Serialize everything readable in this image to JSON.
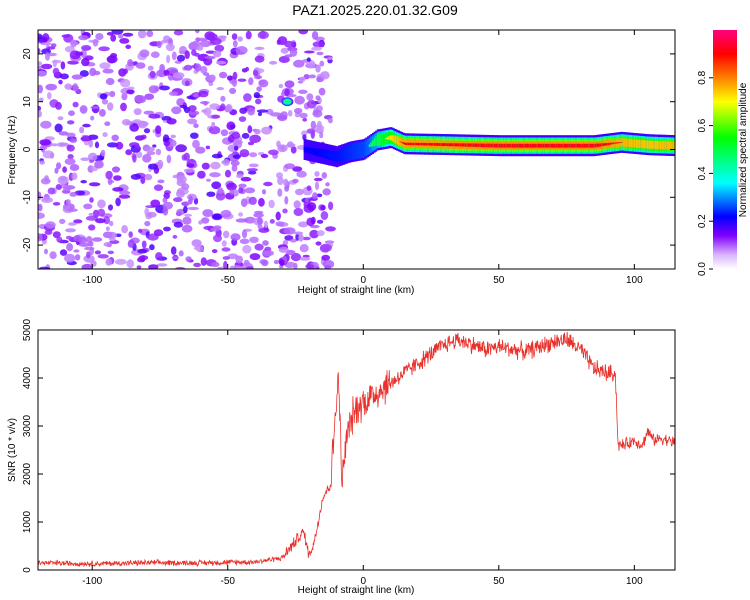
{
  "title": "PAZ1.2025.220.01.32.G09",
  "chart_data": [
    {
      "type": "heatmap",
      "xlabel": "Height of straight line (km)",
      "ylabel": "Frequency (Hz)",
      "xlim": [
        -120,
        115
      ],
      "ylim": [
        -25,
        25
      ],
      "x_ticks": [
        -100,
        -50,
        0,
        50,
        100
      ],
      "y_ticks": [
        -20,
        -10,
        0,
        10,
        20
      ],
      "colorbar": {
        "label": "Normalized spectral amplitude",
        "range": [
          0,
          1
        ],
        "ticks": [
          0.0,
          0.2,
          0.4,
          0.6,
          0.8
        ],
        "colormap": [
          "#ffffff",
          "#b266ff",
          "#7f00ff",
          "#0000ff",
          "#00ffff",
          "#00ff00",
          "#ffff00",
          "#ff8000",
          "#ff0000",
          "#ff007f"
        ]
      },
      "ridge": [
        {
          "x": -22,
          "freq": 0.0,
          "amp": 0.25
        },
        {
          "x": -10,
          "freq": -1.5,
          "amp": 0.3
        },
        {
          "x": -5,
          "freq": -0.5,
          "amp": 0.35
        },
        {
          "x": 0,
          "freq": 0.0,
          "amp": 0.4
        },
        {
          "x": 5,
          "freq": 2.0,
          "amp": 0.6
        },
        {
          "x": 10,
          "freq": 2.5,
          "amp": 0.8
        },
        {
          "x": 15,
          "freq": 1.2,
          "amp": 0.95
        },
        {
          "x": 50,
          "freq": 0.8,
          "amp": 1.0
        },
        {
          "x": 85,
          "freq": 0.8,
          "amp": 1.0
        },
        {
          "x": 95,
          "freq": 1.5,
          "amp": 0.9
        },
        {
          "x": 105,
          "freq": 1.0,
          "amp": 0.85
        },
        {
          "x": 115,
          "freq": 0.8,
          "amp": 0.9
        }
      ],
      "noise_region_x": [
        -120,
        -20
      ]
    },
    {
      "type": "line",
      "xlabel": "Height of straight line (km)",
      "ylabel": "SNR (10 * v/v)",
      "xlim": [
        -120,
        115
      ],
      "ylim": [
        0,
        5000
      ],
      "x_ticks": [
        -100,
        -50,
        0,
        50,
        100
      ],
      "y_ticks": [
        0,
        1000,
        2000,
        3000,
        4000,
        5000
      ],
      "color": "#e8302a",
      "series": [
        {
          "x": [
            -120,
            -100,
            -80,
            -60,
            -40,
            -30,
            -25,
            -22,
            -20,
            -18,
            -15,
            -12,
            -10,
            -9,
            -8,
            -6,
            -4,
            -2,
            0,
            5,
            10,
            15,
            20,
            25,
            30,
            35,
            40,
            45,
            50,
            55,
            60,
            65,
            70,
            75,
            80,
            85,
            90,
            93,
            94,
            96,
            100,
            103,
            105,
            107,
            110,
            115
          ],
          "y": [
            150,
            130,
            150,
            150,
            170,
            250,
            600,
            800,
            300,
            600,
            1500,
            1800,
            3500,
            4000,
            1800,
            2800,
            3200,
            3400,
            3500,
            3700,
            3900,
            4100,
            4300,
            4500,
            4700,
            4800,
            4700,
            4600,
            4650,
            4600,
            4550,
            4650,
            4750,
            4800,
            4600,
            4200,
            4100,
            4100,
            2600,
            2600,
            2700,
            2600,
            2900,
            2700,
            2750,
            2650
          ]
        }
      ]
    }
  ]
}
